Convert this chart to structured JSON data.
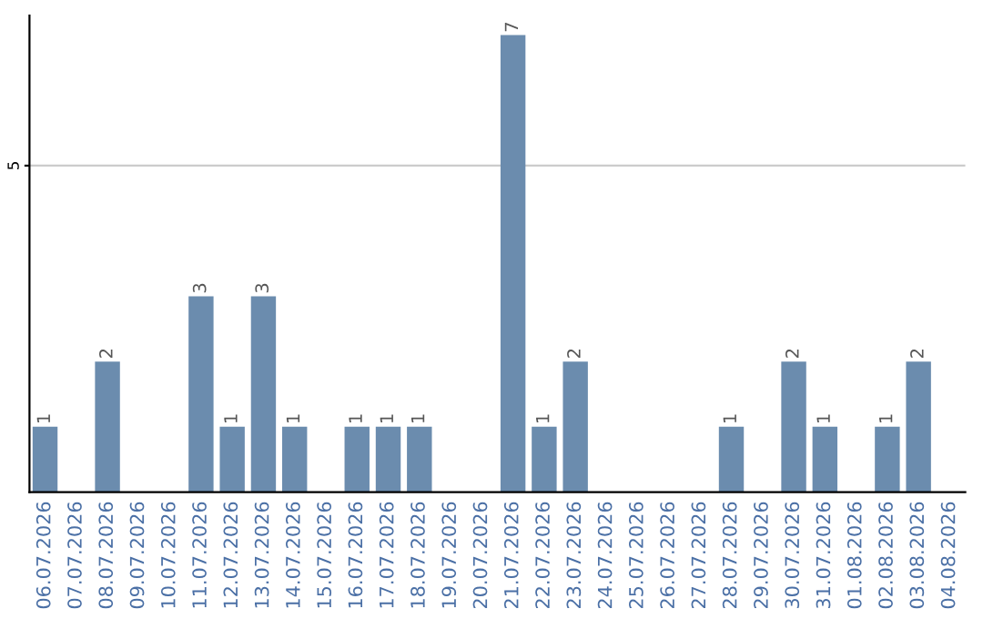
{
  "chart_data": {
    "type": "bar",
    "categories": [
      "06.07.2026",
      "07.07.2026",
      "08.07.2026",
      "09.07.2026",
      "10.07.2026",
      "11.07.2026",
      "12.07.2026",
      "13.07.2026",
      "14.07.2026",
      "15.07.2026",
      "16.07.2026",
      "17.07.2026",
      "18.07.2026",
      "19.07.2026",
      "20.07.2026",
      "21.07.2026",
      "22.07.2026",
      "23.07.2026",
      "24.07.2026",
      "25.07.2026",
      "26.07.2026",
      "27.07.2026",
      "28.07.2026",
      "29.07.2026",
      "30.07.2026",
      "31.07.2026",
      "01.08.2026",
      "02.08.2026",
      "03.08.2026",
      "04.08.2026"
    ],
    "values": [
      1,
      0,
      2,
      0,
      0,
      3,
      1,
      3,
      1,
      0,
      1,
      1,
      1,
      0,
      0,
      7,
      1,
      2,
      0,
      0,
      0,
      0,
      1,
      0,
      2,
      1,
      0,
      1,
      2,
      0
    ],
    "value_labels": [
      "1",
      null,
      "2",
      null,
      null,
      "3",
      "1",
      "3",
      "1",
      null,
      "1",
      "1",
      "1",
      null,
      null,
      "7",
      "1",
      "2",
      null,
      null,
      null,
      null,
      "1",
      null,
      "2",
      "1",
      null,
      "1",
      "2",
      null
    ],
    "color": "#6b8cae",
    "ylim": [
      0,
      7.3
    ],
    "yticks": [
      5
    ],
    "grid": "y"
  }
}
